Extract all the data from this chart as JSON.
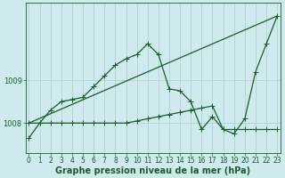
{
  "background_color": "#ceeaec",
  "grid_color": "#b0cccc",
  "line_color": "#1a5c2a",
  "title": "Graphe pression niveau de la mer (hPa)",
  "xlabel_ticks": [
    0,
    1,
    2,
    3,
    4,
    5,
    6,
    7,
    8,
    9,
    10,
    11,
    12,
    13,
    14,
    15,
    16,
    17,
    18,
    19,
    20,
    21,
    22,
    23
  ],
  "yticks": [
    1008,
    1009
  ],
  "ylim": [
    1007.3,
    1010.8
  ],
  "xlim": [
    -0.3,
    23.3
  ],
  "series1_x": [
    0,
    1,
    2,
    3,
    4,
    5,
    6,
    7,
    8,
    9,
    10,
    11,
    12,
    13,
    14,
    15,
    16,
    17,
    18,
    19,
    20,
    21,
    22,
    23
  ],
  "series1_y": [
    1007.65,
    1008.0,
    1008.3,
    1008.5,
    1008.55,
    1008.6,
    1008.85,
    1009.1,
    1009.35,
    1009.5,
    1009.6,
    1009.85,
    1009.6,
    1008.8,
    1008.75,
    1008.5,
    1007.85,
    1008.15,
    1007.85,
    1007.75,
    1008.1,
    1009.2,
    1009.85,
    1010.5
  ],
  "series2_x": [
    0,
    1,
    2,
    3,
    4,
    5,
    6,
    7,
    8,
    9,
    10,
    11,
    12,
    13,
    14,
    15,
    16,
    17,
    18,
    19,
    20,
    21,
    22,
    23
  ],
  "series2_y": [
    1008.0,
    1008.0,
    1008.0,
    1008.0,
    1008.0,
    1008.0,
    1008.0,
    1008.0,
    1008.0,
    1008.0,
    1008.05,
    1008.1,
    1008.15,
    1008.2,
    1008.25,
    1008.3,
    1008.35,
    1008.4,
    1007.85,
    1007.85,
    1007.85,
    1007.85,
    1007.85,
    1007.85
  ],
  "series3_x": [
    0,
    23
  ],
  "series3_y": [
    1008.0,
    1010.5
  ],
  "marker_size": 2.2,
  "linewidth": 0.9,
  "title_fontsize": 7.0,
  "tick_fontsize": 5.5,
  "ytick_fontsize": 6.0
}
